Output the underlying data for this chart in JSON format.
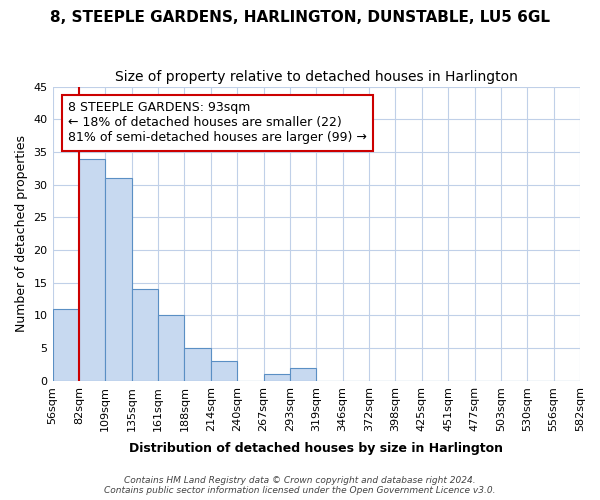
{
  "title": "8, STEEPLE GARDENS, HARLINGTON, DUNSTABLE, LU5 6GL",
  "subtitle": "Size of property relative to detached houses in Harlington",
  "xlabel": "Distribution of detached houses by size in Harlington",
  "ylabel": "Number of detached properties",
  "bin_labels": [
    "56sqm",
    "82sqm",
    "109sqm",
    "135sqm",
    "161sqm",
    "188sqm",
    "214sqm",
    "240sqm",
    "267sqm",
    "293sqm",
    "319sqm",
    "346sqm",
    "372sqm",
    "398sqm",
    "425sqm",
    "451sqm",
    "477sqm",
    "503sqm",
    "530sqm",
    "556sqm",
    "582sqm"
  ],
  "bar_heights": [
    11,
    34,
    31,
    14,
    10,
    5,
    3,
    0,
    1,
    2,
    0,
    0,
    0,
    0,
    0,
    0,
    0,
    0,
    0,
    0
  ],
  "bar_color": "#c7d9f0",
  "bar_edge_color": "#5a8fc4",
  "property_line_x": 1,
  "property_line_color": "#cc0000",
  "ylim": [
    0,
    45
  ],
  "yticks": [
    0,
    5,
    10,
    15,
    20,
    25,
    30,
    35,
    40,
    45
  ],
  "annotation_box_text": "8 STEEPLE GARDENS: 93sqm\n← 18% of detached houses are smaller (22)\n81% of semi-detached houses are larger (99) →",
  "annotation_box_color": "#ffffff",
  "annotation_box_edge_color": "#cc0000",
  "footer_text": "Contains HM Land Registry data © Crown copyright and database right 2024.\nContains public sector information licensed under the Open Government Licence v3.0.",
  "background_color": "#ffffff",
  "grid_color": "#c0d0e8",
  "title_fontsize": 11,
  "subtitle_fontsize": 10,
  "axis_label_fontsize": 9,
  "tick_fontsize": 8,
  "annotation_fontsize": 9
}
